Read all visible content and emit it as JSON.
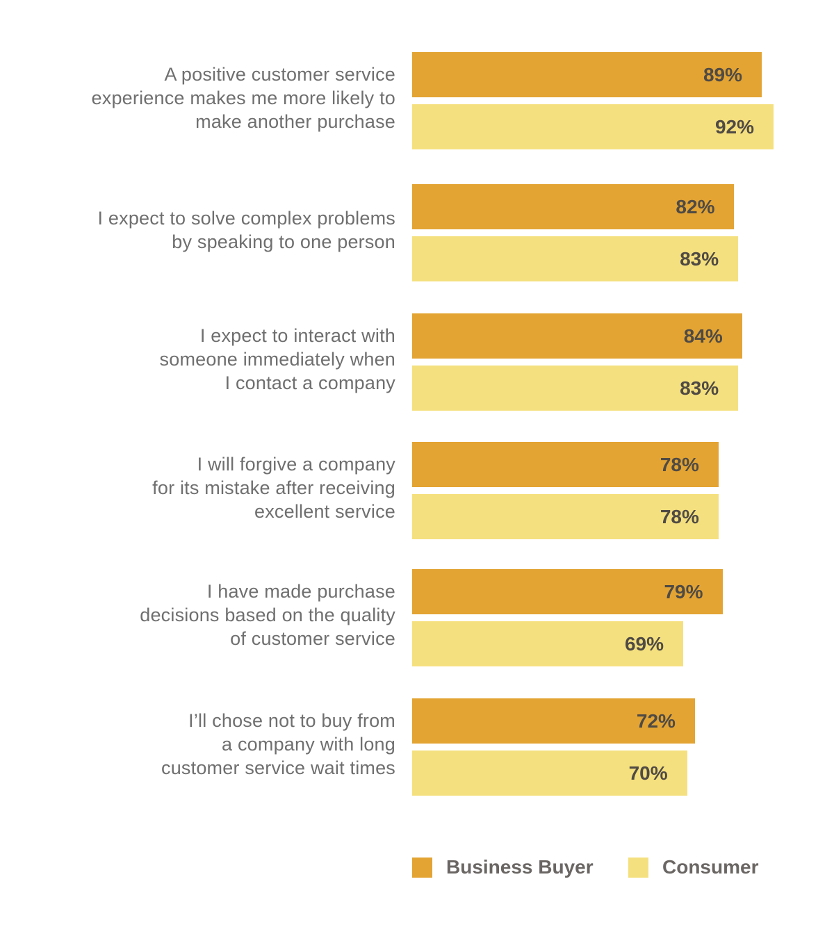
{
  "chart_data": {
    "type": "bar",
    "orientation": "horizontal",
    "categories": [
      "A positive customer service\nexperience makes me more likely to\nmake another purchase",
      "I expect to solve complex problems\nby speaking to one person",
      "I expect to interact with\nsomeone immediately when\nI contact a company",
      "I will forgive a company\nfor its mistake after receiving\nexcellent service",
      "I have made purchase\ndecisions based on the quality\nof customer service",
      "I’ll chose not to buy from\na company with long\ncustomer service wait times"
    ],
    "series": [
      {
        "name": "Business Buyer",
        "color": "#e3a433",
        "values": [
          89,
          82,
          84,
          78,
          79,
          72
        ],
        "labels": [
          "89%",
          "82%",
          "84%",
          "78%",
          "79%",
          "72%"
        ]
      },
      {
        "name": "Consumer",
        "color": "#f5e07f",
        "values": [
          92,
          83,
          83,
          78,
          69,
          70
        ],
        "labels": [
          "92%",
          "83%",
          "83%",
          "78%",
          "69%",
          "70%"
        ]
      }
    ],
    "unit": "%",
    "xlim": [
      0,
      92
    ],
    "legend_position": "bottom-right",
    "grid": false
  },
  "legend": {
    "business": "Business Buyer",
    "consumer": "Consumer"
  }
}
